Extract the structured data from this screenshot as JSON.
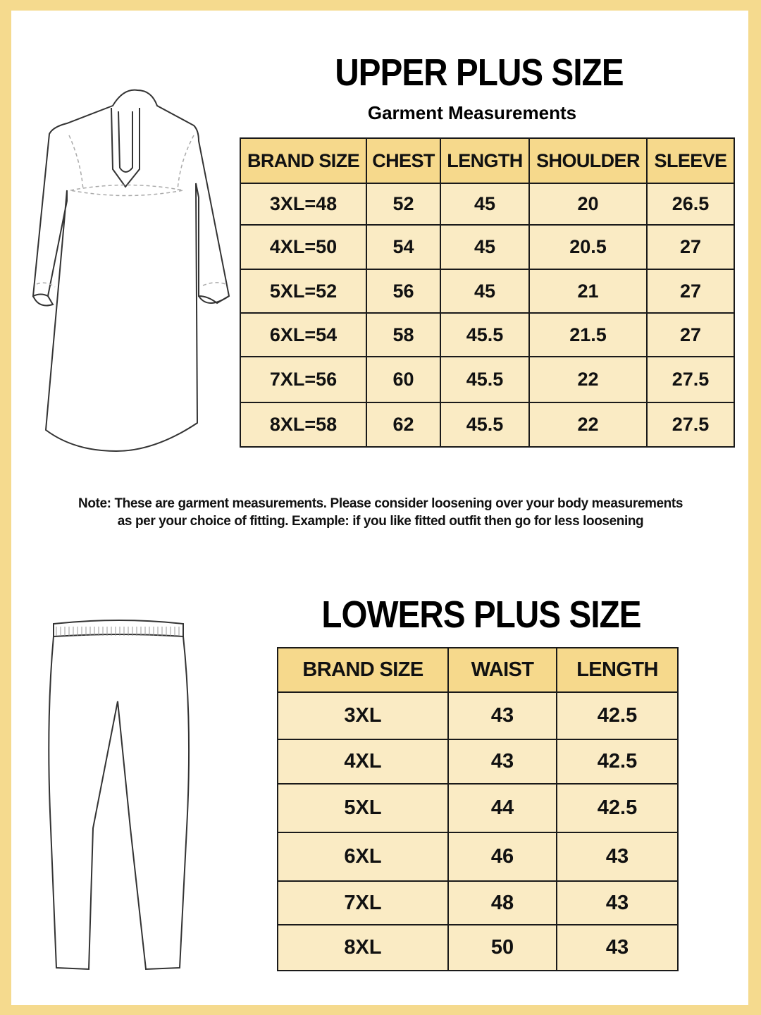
{
  "upper": {
    "title": "UPPER PLUS SIZE",
    "subtitle": "Garment Measurements",
    "headers": [
      "BRAND SIZE",
      "CHEST",
      "LENGTH",
      "SHOULDER",
      "SLEEVE"
    ],
    "rows": [
      [
        "3XL=48",
        "52",
        "45",
        "20",
        "26.5"
      ],
      [
        "4XL=50",
        "54",
        "45",
        "20.5",
        "27"
      ],
      [
        "5XL=52",
        "56",
        "45",
        "21",
        "27"
      ],
      [
        "6XL=54",
        "58",
        "45.5",
        "21.5",
        "27"
      ],
      [
        "7XL=56",
        "60",
        "45.5",
        "22",
        "27.5"
      ],
      [
        "8XL=58",
        "62",
        "45.5",
        "22",
        "27.5"
      ]
    ]
  },
  "note": {
    "line1": "Note: These are garment measurements. Please consider loosening over your body measurements",
    "line2": "as per your choice of fitting. Example: if you like fitted outfit then go for less loosening"
  },
  "lowers": {
    "title": "LOWERS PLUS SIZE",
    "headers": [
      "BRAND SIZE",
      "WAIST",
      "LENGTH"
    ],
    "rows": [
      [
        "3XL",
        "43",
        "42.5"
      ],
      [
        "4XL",
        "43",
        "42.5"
      ],
      [
        "5XL",
        "44",
        "42.5"
      ],
      [
        "6XL",
        "46",
        "43"
      ],
      [
        "7XL",
        "48",
        "43"
      ],
      [
        "8XL",
        "50",
        "43"
      ]
    ]
  },
  "colors": {
    "frame": "#f5da8e",
    "header": "#f6d98c",
    "cell": "#faebc4"
  }
}
